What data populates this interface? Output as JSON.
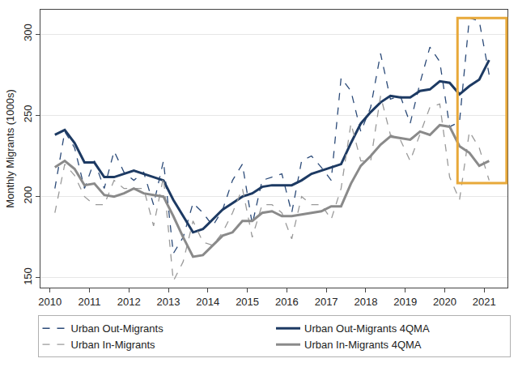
{
  "chart_data": {
    "type": "line",
    "ylabel": "Monthly Migrants (1000s)",
    "x": [
      2010.125,
      2010.375,
      2010.625,
      2010.875,
      2011.125,
      2011.375,
      2011.625,
      2011.875,
      2012.125,
      2012.375,
      2012.625,
      2012.875,
      2013.125,
      2013.375,
      2013.625,
      2013.875,
      2014.125,
      2014.375,
      2014.625,
      2014.875,
      2015.125,
      2015.375,
      2015.625,
      2015.875,
      2016.125,
      2016.375,
      2016.625,
      2016.875,
      2017.125,
      2017.375,
      2017.625,
      2017.875,
      2018.125,
      2018.375,
      2018.625,
      2018.875,
      2019.125,
      2019.375,
      2019.625,
      2019.875,
      2020.125,
      2020.375,
      2020.625,
      2020.875,
      2021.125
    ],
    "series": [
      {
        "name": "Urban Out-Migrants",
        "color": "#2b4a78",
        "line_style": "dashed",
        "values": [
          205,
          240,
          230,
          205,
          222,
          205,
          228,
          215,
          210,
          215,
          195,
          222,
          165,
          175,
          196,
          190,
          182,
          192,
          210,
          220,
          183,
          210,
          212,
          214,
          190,
          222,
          225,
          218,
          210,
          273,
          265,
          240,
          255,
          288,
          260,
          262,
          245,
          270,
          292,
          283,
          243,
          246,
          310,
          308,
          275
        ]
      },
      {
        "name": "Urban Out-Migrants 4QMA",
        "color": "#1d3a63",
        "line_style": "solid",
        "values": [
          238,
          241,
          233,
          221,
          221,
          212,
          212,
          214,
          216,
          214,
          212,
          210,
          198,
          188,
          178,
          180,
          186,
          192,
          196,
          200,
          202,
          206,
          207,
          207,
          207,
          210,
          214,
          216,
          218,
          220,
          233,
          245,
          252,
          258,
          262,
          261,
          261,
          265,
          266,
          271,
          270,
          263,
          268,
          272,
          284
        ]
      },
      {
        "name": "Urban In-Migrants",
        "color": "#9a9a9a",
        "line_style": "dashed",
        "values": [
          190,
          220,
          213,
          200,
          195,
          195,
          210,
          205,
          205,
          205,
          182,
          212,
          148,
          160,
          185,
          172,
          170,
          178,
          190,
          205,
          175,
          195,
          195,
          190,
          174,
          200,
          195,
          195,
          186,
          205,
          245,
          222,
          222,
          262,
          238,
          235,
          222,
          238,
          255,
          257,
          212,
          198,
          240,
          230,
          210
        ]
      },
      {
        "name": "Urban In-Migrants 4QMA",
        "color": "#8a8a8a",
        "line_style": "solid",
        "values": [
          218,
          222,
          217,
          207,
          208,
          201,
          200,
          202,
          205,
          202,
          201,
          200,
          188,
          175,
          163,
          164,
          170,
          176,
          178,
          185,
          185,
          190,
          191,
          188,
          188,
          189,
          190,
          191,
          194,
          194,
          208,
          219,
          225,
          232,
          237,
          236,
          235,
          240,
          238,
          244,
          243,
          231,
          227,
          219,
          222
        ]
      }
    ],
    "xlim": [
      2009.76,
      2021.59
    ],
    "xticks": [
      2010,
      2011,
      2012,
      2013,
      2014,
      2015,
      2016,
      2017,
      2018,
      2019,
      2020,
      2021
    ],
    "ylim": [
      144,
      315
    ],
    "yticks": [
      150,
      200,
      250,
      300
    ],
    "grid": true,
    "legend": "bottom"
  }
}
